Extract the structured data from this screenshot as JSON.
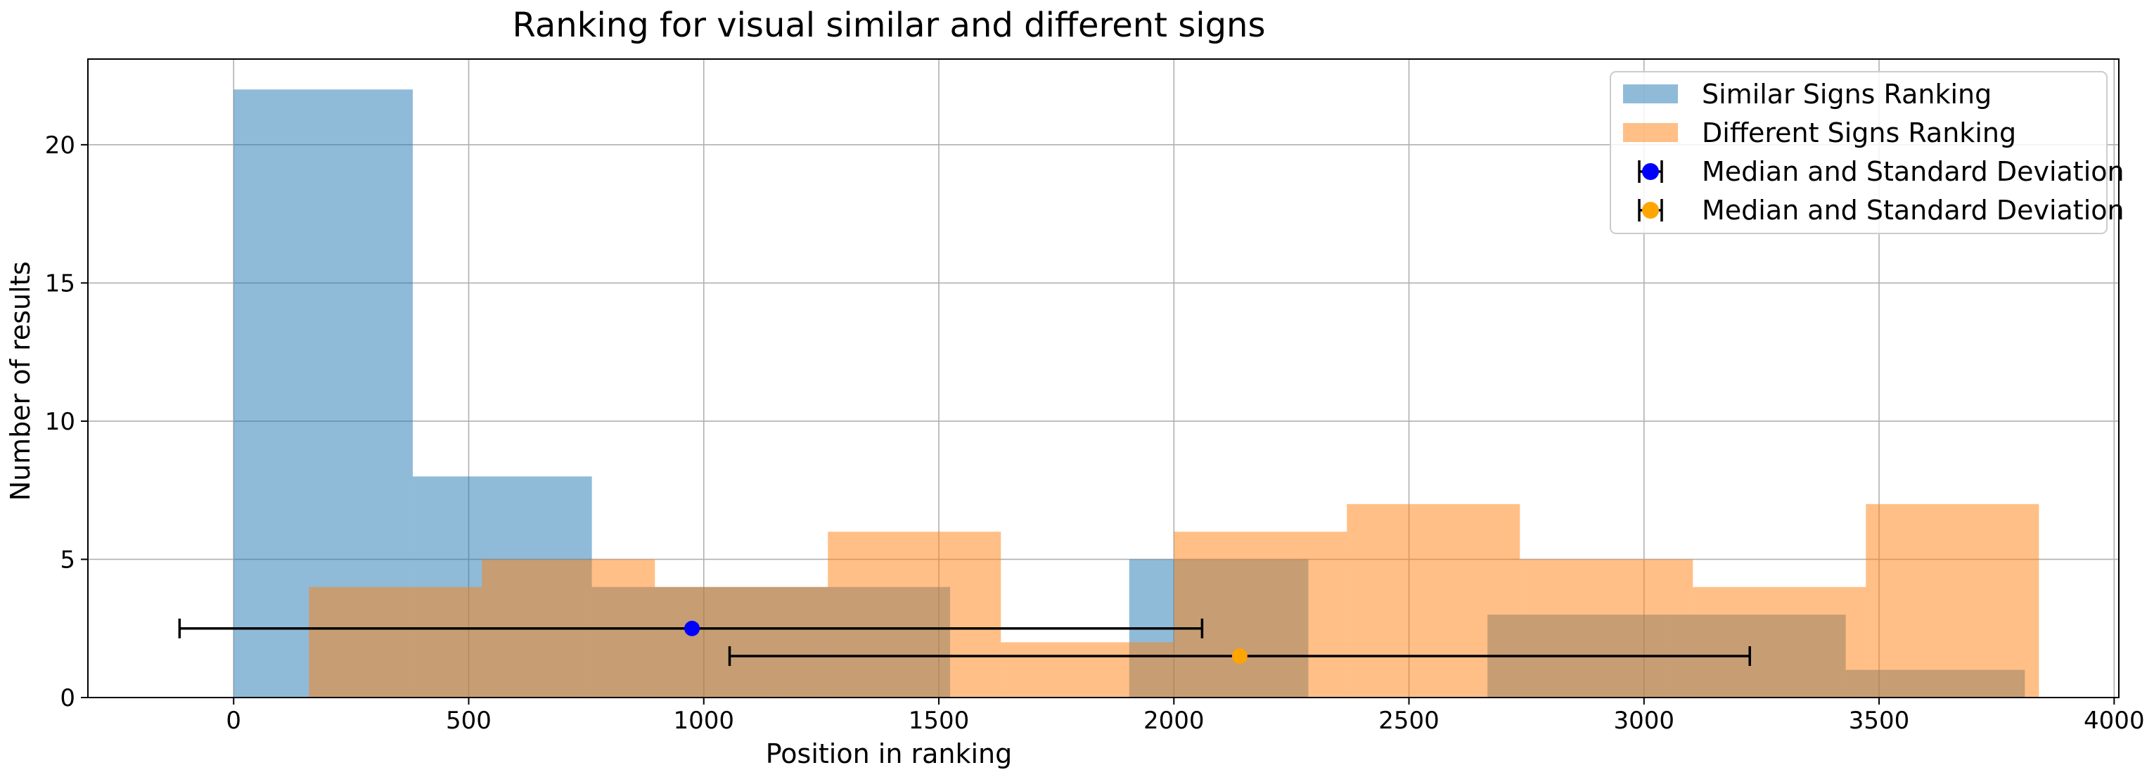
{
  "chart_data": {
    "type": "bar",
    "title": "Ranking for visual similar and different signs",
    "xlabel": "Position in ranking",
    "ylabel": "Number of results",
    "xlim": [
      -310,
      4010
    ],
    "ylim": [
      0,
      23.1
    ],
    "xticks": [
      0,
      500,
      1000,
      1500,
      2000,
      2500,
      3000,
      3500,
      4000
    ],
    "yticks": [
      0,
      5,
      10,
      15,
      20
    ],
    "grid": true,
    "legend_position": "top-right",
    "series": [
      {
        "name": "Similar Signs Ranking",
        "kind": "histogram",
        "color": "#1f77b4",
        "alpha": 0.5,
        "bins": [
          {
            "x0": 0,
            "x1": 381,
            "count": 22
          },
          {
            "x0": 381,
            "x1": 762,
            "count": 8
          },
          {
            "x0": 762,
            "x1": 1143,
            "count": 4
          },
          {
            "x0": 1143,
            "x1": 1524,
            "count": 4
          },
          {
            "x0": 1524,
            "x1": 1905,
            "count": 0
          },
          {
            "x0": 1905,
            "x1": 2286,
            "count": 5
          },
          {
            "x0": 2286,
            "x1": 2667,
            "count": 0
          },
          {
            "x0": 2667,
            "x1": 3048,
            "count": 3
          },
          {
            "x0": 3048,
            "x1": 3429,
            "count": 3
          },
          {
            "x0": 3429,
            "x1": 3810,
            "count": 1
          }
        ]
      },
      {
        "name": "Different Signs Ranking",
        "kind": "histogram",
        "color": "#ff7f0e",
        "alpha": 0.5,
        "bins": [
          {
            "x0": 160,
            "x1": 528,
            "count": 4
          },
          {
            "x0": 528,
            "x1": 896,
            "count": 5
          },
          {
            "x0": 896,
            "x1": 1264,
            "count": 4
          },
          {
            "x0": 1264,
            "x1": 1632,
            "count": 6
          },
          {
            "x0": 1632,
            "x1": 2000,
            "count": 2
          },
          {
            "x0": 2000,
            "x1": 2368,
            "count": 6
          },
          {
            "x0": 2368,
            "x1": 2736,
            "count": 7
          },
          {
            "x0": 2736,
            "x1": 3104,
            "count": 5
          },
          {
            "x0": 3104,
            "x1": 3472,
            "count": 4
          },
          {
            "x0": 3472,
            "x1": 3840,
            "count": 7
          }
        ]
      },
      {
        "name": "Median and Standard Deviation",
        "kind": "errorbar",
        "color": "#0000ff",
        "median": 975,
        "y": 2.5,
        "xerr_low": -115,
        "xerr_high": 2060
      },
      {
        "name": "Median and Standard Deviation",
        "kind": "errorbar",
        "color": "#ffa500",
        "median": 2140,
        "y": 1.5,
        "xerr_low": 1055,
        "xerr_high": 3225
      }
    ]
  }
}
